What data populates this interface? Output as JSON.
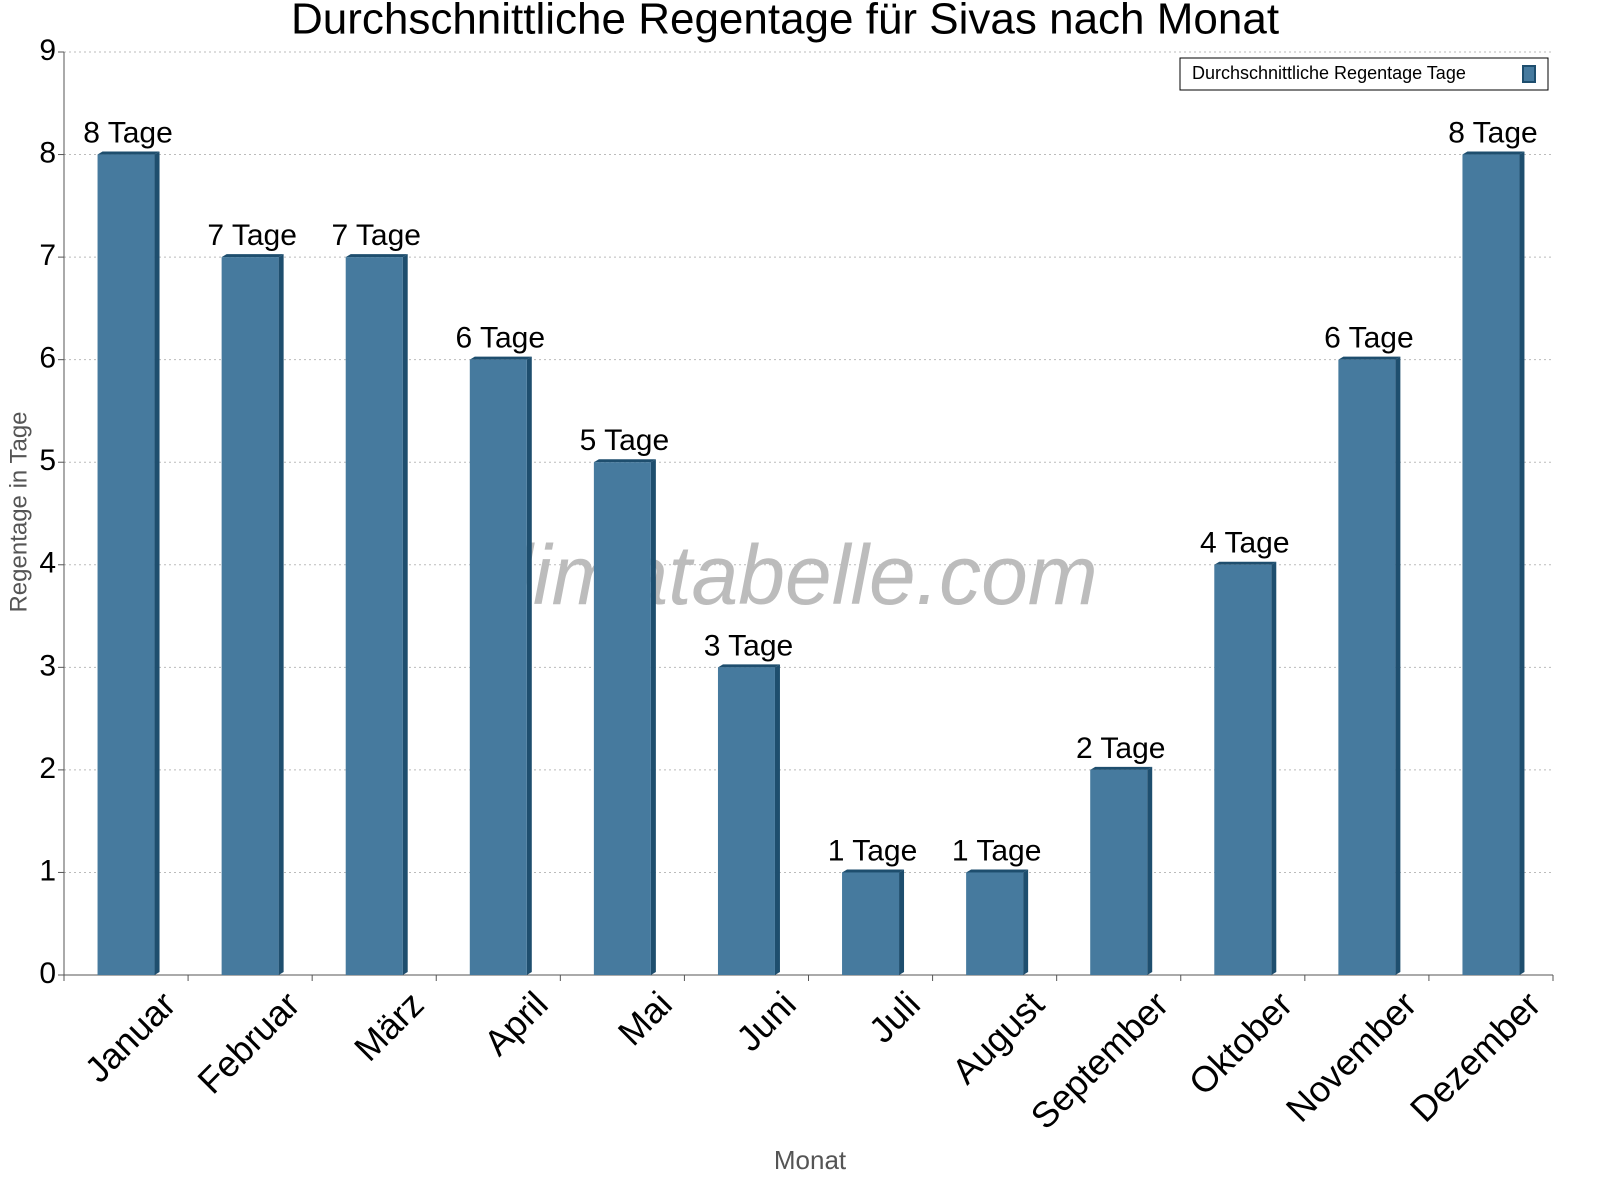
{
  "chart_data": {
    "type": "bar",
    "title": "Durchschnittliche Regentage für Sivas nach Monat",
    "x_label": "Monat",
    "y_label": "Regentage in Tage",
    "watermark": "klimatabelle.com",
    "categories": [
      "Januar",
      "Februar",
      "März",
      "April",
      "Mai",
      "Juni",
      "Juli",
      "August",
      "September",
      "Oktober",
      "November",
      "Dezember"
    ],
    "series": [
      {
        "name": "Durchschnittliche Regentage Tage",
        "color": "#467a9e",
        "values": [
          8,
          7,
          7,
          6,
          5,
          3,
          1,
          1,
          2,
          4,
          6,
          8
        ],
        "value_labels": [
          "8 Tage",
          "7 Tage",
          "7 Tage",
          "6 Tage",
          "5 Tage",
          "3 Tage",
          "1 Tage",
          "1 Tage",
          "2 Tage",
          "4 Tage",
          "6 Tage",
          "8 Tage"
        ]
      }
    ],
    "ylim": [
      0,
      9
    ],
    "yticks": [
      0,
      1,
      2,
      3,
      4,
      5,
      6,
      7,
      8,
      9
    ],
    "grid": true,
    "legend": "upper right"
  }
}
